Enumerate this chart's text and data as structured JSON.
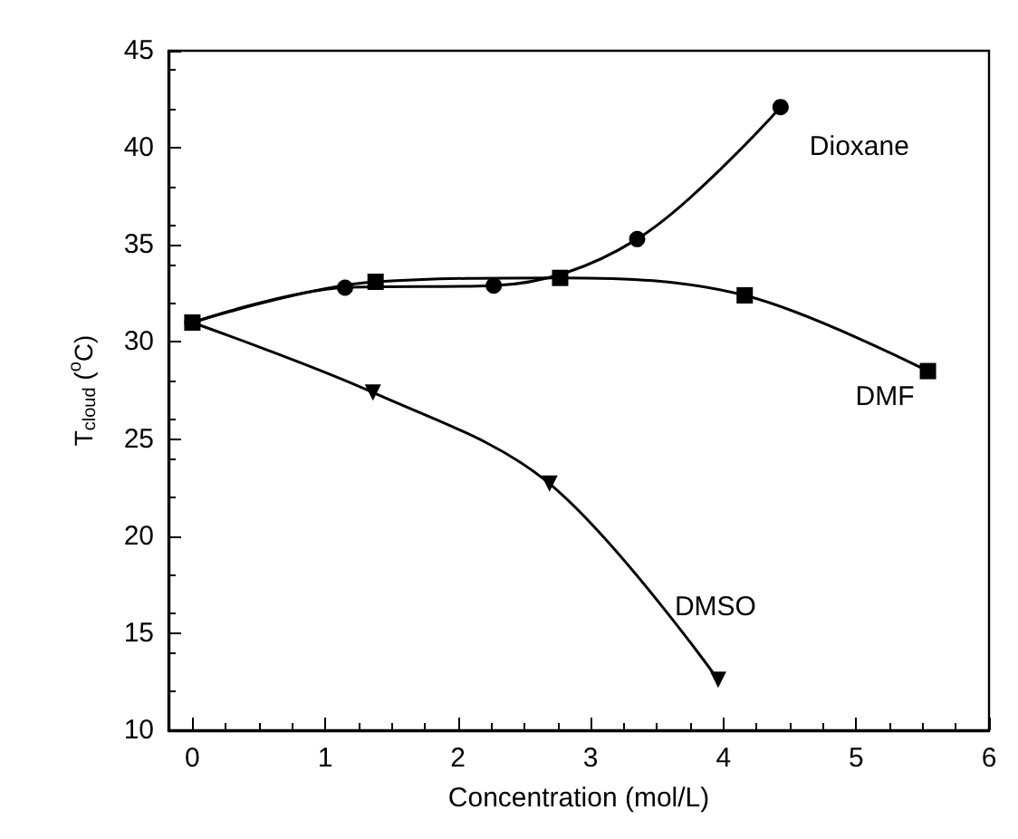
{
  "chart_data": {
    "type": "line",
    "xlabel": "Concentration (mol/L)",
    "ylabel": "T$_{cloud}$ ($^{o}$C)",
    "xlim": [
      -0.18,
      6
    ],
    "xticks": [
      0,
      1,
      2,
      3,
      4,
      5,
      6
    ],
    "ylim": [
      10,
      45
    ],
    "yticks": [
      10,
      15,
      20,
      25,
      30,
      35,
      40,
      45
    ],
    "grid": false,
    "legend": false,
    "line_style": "solid",
    "series": [
      {
        "name": "Dioxane",
        "color": "#000000",
        "marker": "circle",
        "x": [
          0,
          1.15,
          2.27,
          3.35,
          4.43
        ],
        "values": [
          31,
          32.8,
          32.9,
          35.3,
          42.1
        ]
      },
      {
        "name": "DMF",
        "color": "#000000",
        "marker": "square",
        "x": [
          0,
          1.38,
          2.77,
          4.16,
          5.54
        ],
        "values": [
          31,
          33.1,
          33.3,
          32.4,
          28.5
        ]
      },
      {
        "name": "DMSO",
        "color": "#000000",
        "marker": "triangle",
        "x": [
          0,
          1.36,
          2.69,
          3.96
        ],
        "values": [
          31,
          27.4,
          22.7,
          12.6
        ]
      }
    ]
  }
}
